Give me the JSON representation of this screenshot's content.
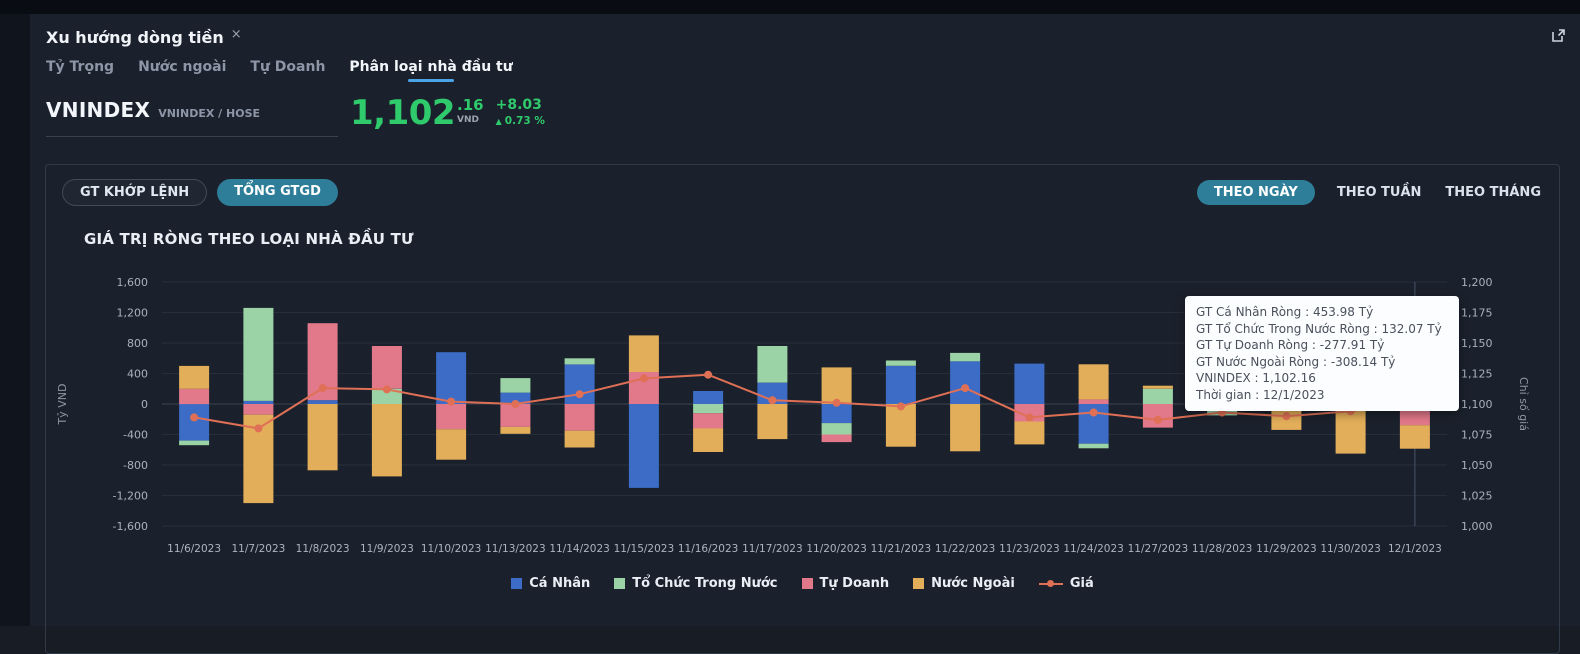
{
  "window": {
    "tab_title": "Xu hướng dòng tiền",
    "close_icon": "×"
  },
  "nav_tabs": [
    {
      "label": "Tỷ Trọng",
      "active": false
    },
    {
      "label": "Nước ngoài",
      "active": false
    },
    {
      "label": "Tự Doanh",
      "active": false
    },
    {
      "label": "Phân loại nhà đầu tư",
      "active": true
    }
  ],
  "index": {
    "name": "VNINDEX",
    "subtitle": "VNINDEX / HOSE",
    "price_int": "1,102",
    "price_dec": ".16",
    "currency": "VND",
    "change": "+8.03",
    "arrow": "▲",
    "change_pct": "0.73 %",
    "up_color": "#2fca6c"
  },
  "toolbar": {
    "left": [
      {
        "label": "GT KHỚP LỆNH",
        "active": false
      },
      {
        "label": "TỔNG GTGD",
        "active": true
      }
    ],
    "right": [
      {
        "label": "THEO NGÀY",
        "active": true
      },
      {
        "label": "THEO TUẦN",
        "active": false
      },
      {
        "label": "THEO THÁNG",
        "active": false
      }
    ],
    "active_pill_color": "#2e7e99"
  },
  "chart_data": {
    "type": "bar",
    "title": "GIÁ TRỊ RÒNG THEO LOẠI NHÀ ĐẦU TƯ",
    "stacked": true,
    "grid": true,
    "legend_position": "bottom",
    "categories": [
      "11/6/2023",
      "11/7/2023",
      "11/8/2023",
      "11/9/2023",
      "11/10/2023",
      "11/13/2023",
      "11/14/2023",
      "11/15/2023",
      "11/16/2023",
      "11/17/2023",
      "11/20/2023",
      "11/21/2023",
      "11/22/2023",
      "11/23/2023",
      "11/24/2023",
      "11/27/2023",
      "11/28/2023",
      "11/29/2023",
      "11/30/2023",
      "12/1/2023"
    ],
    "series": [
      {
        "name": "Cá Nhân",
        "color": "#3c6cc6",
        "values": [
          -480,
          40,
          50,
          0,
          680,
          150,
          520,
          -1100,
          170,
          280,
          -250,
          500,
          560,
          530,
          -520,
          0,
          530,
          200,
          60,
          453.98
        ]
      },
      {
        "name": "Tổ Chức Trong Nước",
        "color": "#9bd3a6",
        "values": [
          -60,
          1220,
          0,
          200,
          0,
          190,
          80,
          0,
          -120,
          480,
          -150,
          70,
          110,
          0,
          -60,
          200,
          -150,
          0,
          0,
          132.07
        ]
      },
      {
        "name": "Tự Doanh",
        "color": "#e2798b",
        "values": [
          200,
          -140,
          1010,
          560,
          -330,
          -300,
          -350,
          420,
          -200,
          0,
          -100,
          0,
          0,
          -230,
          60,
          -310,
          0,
          90,
          260,
          -277.91
        ]
      },
      {
        "name": "Nước Ngoài",
        "color": "#e3ae59",
        "values": [
          300,
          -1160,
          -870,
          -950,
          -400,
          -90,
          -220,
          480,
          -310,
          -460,
          480,
          -560,
          -620,
          -300,
          460,
          40,
          0,
          -340,
          -650,
          -308.14
        ]
      }
    ],
    "line_series": {
      "name": "Giá",
      "color": "#df7055",
      "axis": "right",
      "values": [
        1089,
        1080,
        1113,
        1112,
        1102,
        1100,
        1108,
        1121,
        1124,
        1103,
        1101,
        1098,
        1113,
        1089,
        1093,
        1087,
        1093,
        1090,
        1094,
        1102.16
      ]
    },
    "left_axis": {
      "label": "Tỷ VND",
      "min": -1600,
      "max": 1600,
      "ticks": [
        {
          "v": 1600,
          "label": "1,600"
        },
        {
          "v": 1200,
          "label": "1,200"
        },
        {
          "v": 800,
          "label": "800"
        },
        {
          "v": 400,
          "label": "400"
        },
        {
          "v": 0,
          "label": "0"
        },
        {
          "v": -400,
          "label": "-400"
        },
        {
          "v": -800,
          "label": "-800"
        },
        {
          "v": -1200,
          "label": "-1,200"
        },
        {
          "v": -1600,
          "label": "-1,600"
        }
      ]
    },
    "right_axis": {
      "label": "Chỉ số giá",
      "min": 1000,
      "max": 1200,
      "ticks": [
        {
          "v": 1200,
          "label": "1,200"
        },
        {
          "v": 1175,
          "label": "1,175"
        },
        {
          "v": 1150,
          "label": "1,150"
        },
        {
          "v": 1125,
          "label": "1,125"
        },
        {
          "v": 1100,
          "label": "1,100"
        },
        {
          "v": 1075,
          "label": "1,075"
        },
        {
          "v": 1050,
          "label": "1,050"
        },
        {
          "v": 1025,
          "label": "1,025"
        },
        {
          "v": 1000,
          "label": "1,000"
        }
      ]
    }
  },
  "tooltip": {
    "rows": [
      "GT Cá Nhân Ròng  : 453.98 Tỷ",
      "GT Tổ Chức Trong Nước Ròng : 132.07 Tỷ",
      "GT Tự Doanh Ròng : -277.91 Tỷ",
      "GT Nước Ngoài Ròng : -308.14 Tỷ",
      "VNINDEX : 1,102.16",
      "Thời gian : 12/1/2023"
    ]
  }
}
